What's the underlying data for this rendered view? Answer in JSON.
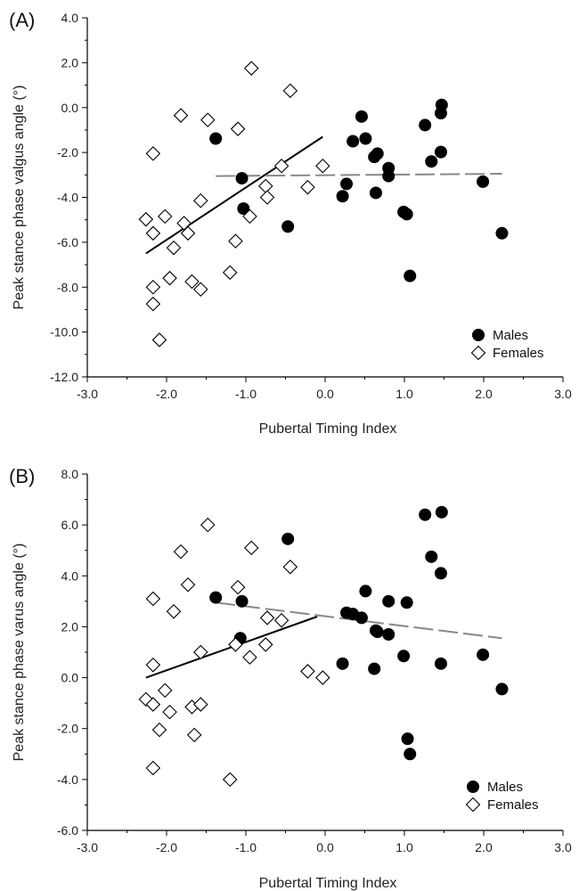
{
  "chart_data": [
    {
      "type": "scatter",
      "panel": "(A)",
      "xlabel": "Pubertal Timing Index",
      "ylabel": "Peak stance phase valgus angle (°)",
      "xlim": [
        -3.0,
        3.0
      ],
      "ylim": [
        -12.0,
        4.0
      ],
      "xticks": [
        "-3.0",
        "-2.0",
        "-1.0",
        "0.0",
        "1.0",
        "2.0",
        "3.0"
      ],
      "yticks": [
        "4.0",
        "2.0",
        "0.0",
        "-2.0",
        "-4.0",
        "-6.0",
        "-8.0",
        "-10.0",
        "-12.0"
      ],
      "legend": {
        "position": "bottom-right",
        "entries": [
          "Males",
          "Females"
        ]
      },
      "series": [
        {
          "name": "Males",
          "marker": "filled-circle",
          "points": [
            [
              -1.38,
              -1.38
            ],
            [
              -1.05,
              -3.15
            ],
            [
              -1.03,
              -4.5
            ],
            [
              -0.47,
              -5.3
            ],
            [
              0.22,
              -3.95
            ],
            [
              0.27,
              -3.4
            ],
            [
              0.35,
              -1.5
            ],
            [
              0.46,
              -0.4
            ],
            [
              0.51,
              -1.38
            ],
            [
              0.62,
              -2.2
            ],
            [
              0.64,
              -3.8
            ],
            [
              0.66,
              -2.05
            ],
            [
              0.8,
              -2.7
            ],
            [
              0.8,
              -3.05
            ],
            [
              0.99,
              -4.65
            ],
            [
              1.03,
              -4.75
            ],
            [
              1.07,
              -7.5
            ],
            [
              1.26,
              -0.78
            ],
            [
              1.34,
              -2.4
            ],
            [
              1.46,
              -0.25
            ],
            [
              1.47,
              0.12
            ],
            [
              1.46,
              -1.98
            ],
            [
              1.99,
              -3.3
            ],
            [
              2.23,
              -5.6
            ]
          ]
        },
        {
          "name": "Females",
          "marker": "open-diamond",
          "points": [
            [
              -2.26,
              -4.98
            ],
            [
              -2.17,
              -2.05
            ],
            [
              -2.17,
              -5.6
            ],
            [
              -2.17,
              -8.0
            ],
            [
              -2.17,
              -8.75
            ],
            [
              -2.09,
              -10.35
            ],
            [
              -2.02,
              -4.85
            ],
            [
              -1.96,
              -7.6
            ],
            [
              -1.91,
              -6.25
            ],
            [
              -1.82,
              -0.35
            ],
            [
              -1.78,
              -5.15
            ],
            [
              -1.73,
              -5.6
            ],
            [
              -1.68,
              -7.75
            ],
            [
              -1.57,
              -8.1
            ],
            [
              -1.57,
              -4.15
            ],
            [
              -1.48,
              -0.55
            ],
            [
              -1.2,
              -7.35
            ],
            [
              -1.13,
              -5.95
            ],
            [
              -1.1,
              -0.95
            ],
            [
              -0.95,
              -4.85
            ],
            [
              -0.93,
              1.75
            ],
            [
              -0.75,
              -3.5
            ],
            [
              -0.73,
              -4.0
            ],
            [
              -0.55,
              -2.6
            ],
            [
              -0.44,
              0.75
            ],
            [
              -0.22,
              -3.55
            ],
            [
              -0.03,
              -2.6
            ]
          ]
        }
      ],
      "fits": [
        {
          "name": "Females",
          "style": "solid",
          "color": "#000000",
          "x": [
            -2.26,
            -0.03
          ],
          "y": [
            -6.5,
            -1.3
          ]
        },
        {
          "name": "Males",
          "style": "dashed",
          "color": "#888888",
          "x": [
            -1.38,
            2.23
          ],
          "y": [
            -3.05,
            -2.95
          ]
        }
      ]
    },
    {
      "type": "scatter",
      "panel": "(B)",
      "xlabel": "Pubertal Timing Index",
      "ylabel": "Peak stance phase varus angle (°)",
      "xlim": [
        -3.0,
        3.0
      ],
      "ylim": [
        -6.0,
        8.0
      ],
      "xticks": [
        "-3.0",
        "-2.0",
        "-1.0",
        "0.0",
        "1.0",
        "2.0",
        "3.0"
      ],
      "yticks": [
        "8.0",
        "6.0",
        "4.0",
        "2.0",
        "0.0",
        "-2.0",
        "-4.0",
        "-6.0"
      ],
      "legend": {
        "position": "bottom-right",
        "entries": [
          "Males",
          "Females"
        ]
      },
      "series": [
        {
          "name": "Males",
          "marker": "filled-circle",
          "points": [
            [
              -1.38,
              3.15
            ],
            [
              -1.05,
              3.0
            ],
            [
              -1.07,
              1.55
            ],
            [
              -0.47,
              5.45
            ],
            [
              0.22,
              0.55
            ],
            [
              0.27,
              2.55
            ],
            [
              0.35,
              2.5
            ],
            [
              0.46,
              2.35
            ],
            [
              0.51,
              3.4
            ],
            [
              0.62,
              0.35
            ],
            [
              0.64,
              1.85
            ],
            [
              0.66,
              1.8
            ],
            [
              0.8,
              3.0
            ],
            [
              0.8,
              1.7
            ],
            [
              0.99,
              0.85
            ],
            [
              1.03,
              2.95
            ],
            [
              1.04,
              -2.4
            ],
            [
              1.07,
              -3.0
            ],
            [
              1.26,
              6.4
            ],
            [
              1.34,
              4.75
            ],
            [
              1.46,
              4.1
            ],
            [
              1.47,
              6.5
            ],
            [
              1.46,
              0.55
            ],
            [
              1.99,
              0.9
            ],
            [
              2.23,
              -0.45
            ]
          ]
        },
        {
          "name": "Females",
          "marker": "open-diamond",
          "points": [
            [
              -2.26,
              -0.85
            ],
            [
              -2.17,
              3.1
            ],
            [
              -2.17,
              0.5
            ],
            [
              -2.17,
              -1.05
            ],
            [
              -2.17,
              -3.55
            ],
            [
              -2.09,
              -2.05
            ],
            [
              -2.02,
              -0.5
            ],
            [
              -1.96,
              -1.35
            ],
            [
              -1.91,
              2.6
            ],
            [
              -1.82,
              4.95
            ],
            [
              -1.73,
              3.65
            ],
            [
              -1.68,
              -1.15
            ],
            [
              -1.65,
              -2.25
            ],
            [
              -1.57,
              1.0
            ],
            [
              -1.57,
              -1.05
            ],
            [
              -1.48,
              6.0
            ],
            [
              -1.2,
              -4.0
            ],
            [
              -1.13,
              1.3
            ],
            [
              -1.1,
              3.55
            ],
            [
              -0.95,
              0.8
            ],
            [
              -0.93,
              5.1
            ],
            [
              -0.75,
              1.3
            ],
            [
              -0.73,
              2.35
            ],
            [
              -0.55,
              2.25
            ],
            [
              -0.44,
              4.35
            ],
            [
              -0.22,
              0.25
            ],
            [
              -0.03,
              0.0
            ]
          ]
        }
      ],
      "fits": [
        {
          "name": "Females",
          "style": "solid",
          "color": "#000000",
          "x": [
            -2.26,
            -0.1
          ],
          "y": [
            0.0,
            2.4
          ]
        },
        {
          "name": "Males",
          "style": "dashed",
          "color": "#888888",
          "x": [
            -1.38,
            2.23
          ],
          "y": [
            2.95,
            1.55
          ]
        }
      ]
    }
  ]
}
